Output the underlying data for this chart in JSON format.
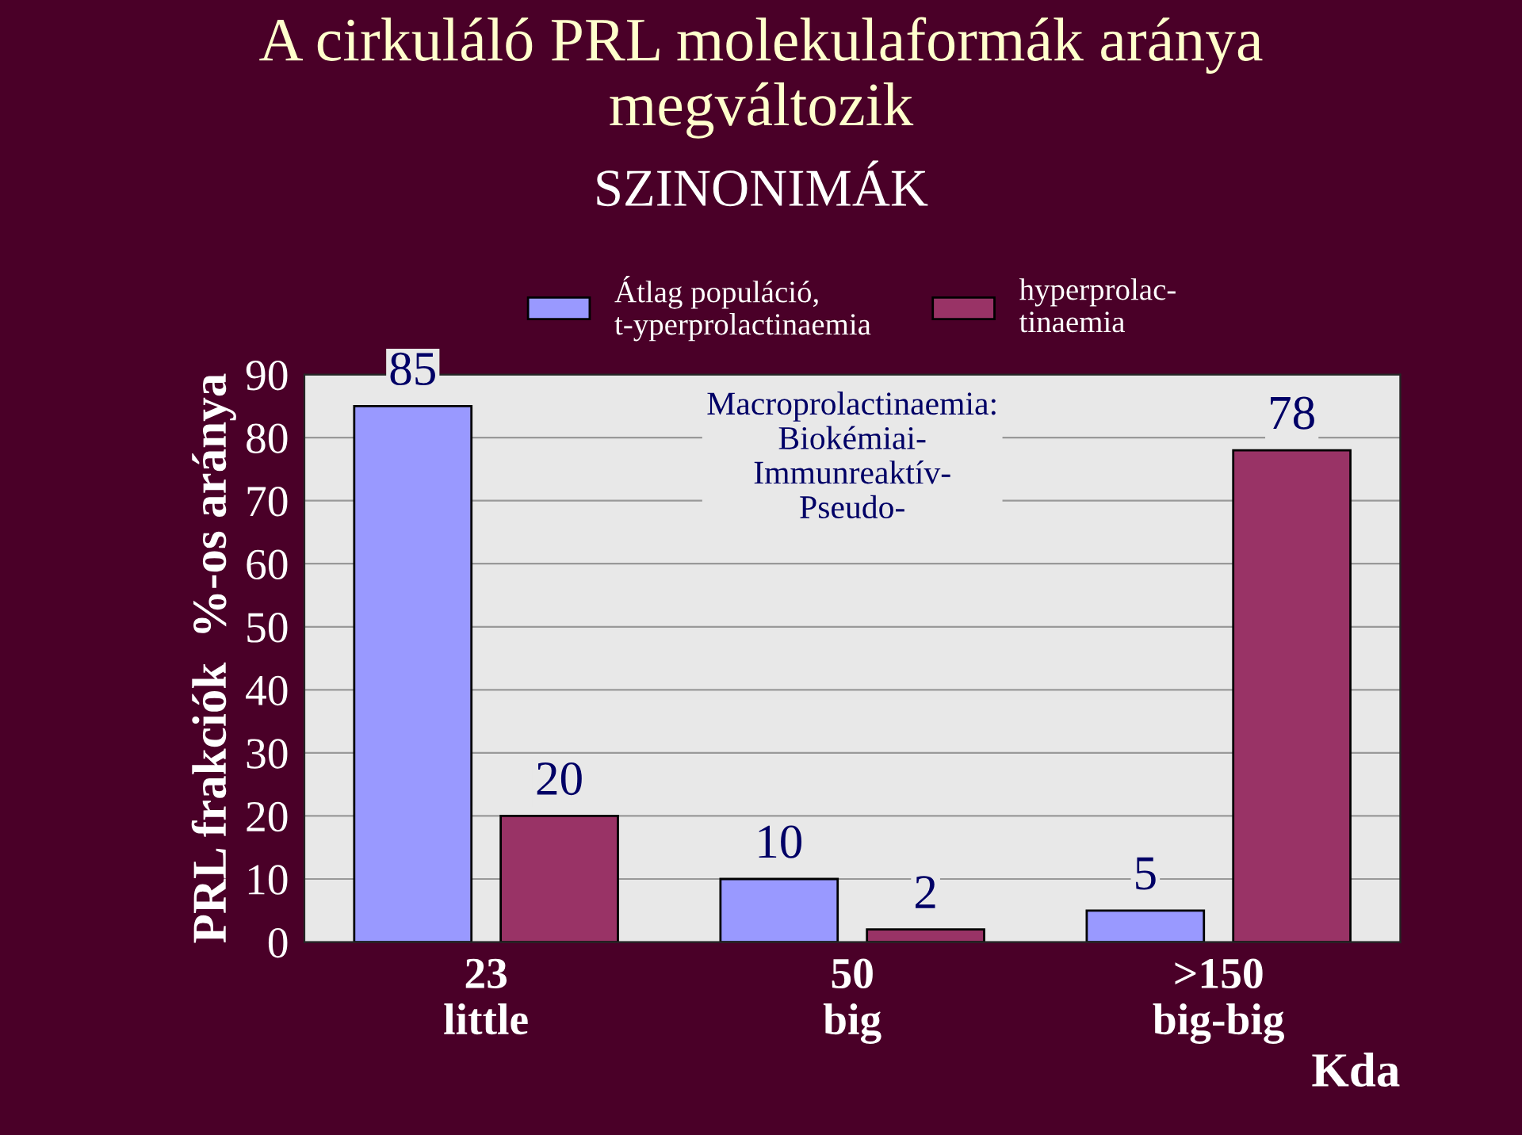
{
  "chart_data": {
    "type": "bar",
    "title": "A cirkuláló PRL molekulaformák aránya\nmegváltozik",
    "ylabel": "PRL frakciók  %-os aránya",
    "xlabel": "Kda",
    "categories": [
      "23\nlittle",
      "50\nbig",
      ">150\nbig-big"
    ],
    "series": [
      {
        "name": "Átlag populáció,\nt-yperprolactinaemia",
        "color": "#9999ff",
        "values": [
          85,
          10,
          5
        ]
      },
      {
        "name": "hyperprolac-\ntinaemia",
        "color": "#993366",
        "values": [
          20,
          2,
          78
        ]
      }
    ],
    "ylim": [
      0,
      90
    ],
    "yticks": [
      0,
      10,
      20,
      30,
      40,
      50,
      60,
      70,
      80,
      90
    ],
    "grid": "y",
    "data_labels": true,
    "legend": "top",
    "annotations": [
      "SZINONIMÁK",
      "Macroprolactinaemia:\nBiokémiai-\nImmunreaktív-\nPseudo-"
    ]
  }
}
